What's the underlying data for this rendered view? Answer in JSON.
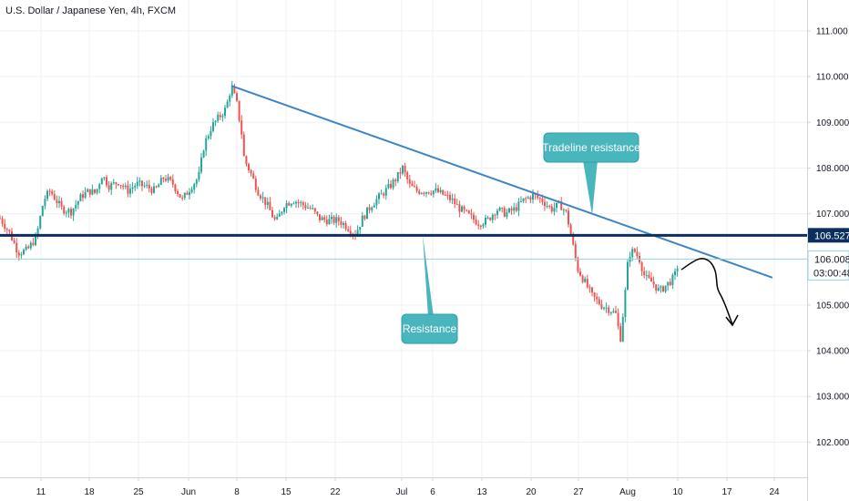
{
  "header": {
    "symbol_label": "U.S. Dollar / Japanese Yen, 4h, FXCM"
  },
  "colors": {
    "up_candle": "#26a69a",
    "down_candle": "#ef5350",
    "trendline": "#3d85c6",
    "support_line": "#0d2f5e",
    "current_price_line": "#8fd3e6",
    "callout_fill": "#49b6bd",
    "grid": "#eef0f3",
    "axis_border": "#d1d4dc",
    "projection": "#000000"
  },
  "axis_labels": {
    "price_ticks": [
      "111.000",
      "110.000",
      "109.000",
      "108.000",
      "107.000",
      "105.000",
      "104.000",
      "103.000",
      "102.000"
    ],
    "date_ticks": [
      "11",
      "18",
      "25",
      "Jun",
      "8",
      "15",
      "22",
      "Jul",
      "6",
      "13",
      "20",
      "27",
      "Aug",
      "10",
      "17",
      "24"
    ]
  },
  "price_tags": {
    "resistance_level": "106.527",
    "last_price": "106.008",
    "countdown": "03:00:48"
  },
  "annotations": {
    "tradeline_label": "Tradeline resistance",
    "resistance_label": "Resistance"
  },
  "chart_data": {
    "type": "candlestick",
    "title": "U.S. Dollar / Japanese Yen, 4h, FXCM",
    "x_ticks": [
      "11",
      "18",
      "25",
      "Jun",
      "8",
      "15",
      "22",
      "Jul",
      "6",
      "13",
      "20",
      "27",
      "Aug",
      "10",
      "17",
      "24"
    ],
    "y_ticks": [
      102.0,
      103.0,
      104.0,
      105.0,
      107.0,
      108.0,
      109.0,
      110.0,
      111.0
    ],
    "ylim": [
      101.2,
      111.35
    ],
    "grid": true,
    "close_path": [
      [
        0,
        106.9
      ],
      [
        10,
        106.6
      ],
      [
        20,
        106.15
      ],
      [
        30,
        106.2
      ],
      [
        40,
        106.5
      ],
      [
        48,
        107.3
      ],
      [
        55,
        107.5
      ],
      [
        68,
        107.1
      ],
      [
        78,
        107.05
      ],
      [
        90,
        107.4
      ],
      [
        98,
        107.5
      ],
      [
        105,
        107.45
      ],
      [
        112,
        107.85
      ],
      [
        120,
        107.6
      ],
      [
        130,
        107.7
      ],
      [
        140,
        107.5
      ],
      [
        150,
        107.65
      ],
      [
        160,
        107.6
      ],
      [
        170,
        107.5
      ],
      [
        180,
        107.8
      ],
      [
        190,
        107.65
      ],
      [
        200,
        107.3
      ],
      [
        210,
        107.6
      ],
      [
        218,
        107.8
      ],
      [
        224,
        108.5
      ],
      [
        232,
        108.9
      ],
      [
        240,
        109.1
      ],
      [
        248,
        109.3
      ],
      [
        254,
        109.8
      ],
      [
        260,
        109.4
      ],
      [
        265,
        108.8
      ],
      [
        268,
        108.2
      ],
      [
        275,
        107.9
      ],
      [
        283,
        107.5
      ],
      [
        293,
        107.2
      ],
      [
        303,
        106.8
      ],
      [
        312,
        107.2
      ],
      [
        322,
        107.3
      ],
      [
        332,
        107.2
      ],
      [
        342,
        107.1
      ],
      [
        350,
        106.9
      ],
      [
        360,
        106.85
      ],
      [
        372,
        106.85
      ],
      [
        382,
        106.7
      ],
      [
        390,
        106.55
      ],
      [
        398,
        106.9
      ],
      [
        408,
        107.2
      ],
      [
        418,
        107.4
      ],
      [
        428,
        107.6
      ],
      [
        436,
        107.8
      ],
      [
        442,
        108.0
      ],
      [
        450,
        107.6
      ],
      [
        458,
        107.5
      ],
      [
        468,
        107.5
      ],
      [
        478,
        107.5
      ],
      [
        488,
        107.4
      ],
      [
        496,
        107.3
      ],
      [
        505,
        107.1
      ],
      [
        515,
        106.95
      ],
      [
        525,
        106.8
      ],
      [
        535,
        106.85
      ],
      [
        545,
        107.1
      ],
      [
        555,
        107.0
      ],
      [
        565,
        107.1
      ],
      [
        575,
        107.3
      ],
      [
        585,
        107.4
      ],
      [
        595,
        107.3
      ],
      [
        605,
        107.1
      ],
      [
        615,
        107.2
      ],
      [
        622,
        107.0
      ],
      [
        628,
        106.4
      ],
      [
        634,
        105.8
      ],
      [
        642,
        105.5
      ],
      [
        650,
        105.2
      ],
      [
        660,
        105.0
      ],
      [
        670,
        104.9
      ],
      [
        676,
        104.8
      ],
      [
        681,
        104.25
      ],
      [
        686,
        105.2
      ],
      [
        690,
        106.1
      ],
      [
        696,
        106.2
      ],
      [
        702,
        106.0
      ],
      [
        708,
        105.6
      ],
      [
        716,
        105.5
      ],
      [
        724,
        105.3
      ],
      [
        732,
        105.45
      ],
      [
        740,
        105.6
      ],
      [
        746,
        106.0
      ]
    ],
    "series": [
      {
        "name": "",
        "type": "line",
        "style": "trendline",
        "points": [
          [
            254,
            109.8
          ],
          [
            848,
            105.6
          ]
        ]
      },
      {
        "name": "",
        "type": "hline",
        "style": "support",
        "value": 106.527
      },
      {
        "name": "",
        "type": "hline",
        "style": "current-price",
        "value": 106.008
      }
    ]
  }
}
